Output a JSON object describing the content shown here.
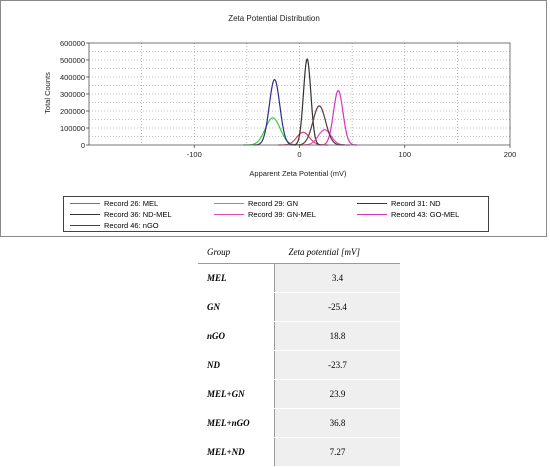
{
  "chart_data": {
    "type": "line",
    "title": "Zeta Potential Distribution",
    "xlabel": "Apparent Zeta Potential (mV)",
    "ylabel": "Total Counts",
    "xlim": [
      -200,
      200
    ],
    "ylim": [
      0,
      600000
    ],
    "xticks": [
      -100,
      0,
      100,
      200
    ],
    "xtick_labels": [
      "-100",
      "0",
      "100",
      "200"
    ],
    "yticks": [
      0,
      100000,
      200000,
      300000,
      400000,
      500000,
      600000
    ],
    "ytick_labels": [
      "0",
      "100000",
      "200000",
      "300000",
      "400000",
      "500000",
      "600000"
    ],
    "grid": true,
    "legend_position": "bottom",
    "series": [
      {
        "name": "Record 26: MEL",
        "color": "#d9456a",
        "peak_x": 3.4,
        "peak_y": 75000,
        "width": 6
      },
      {
        "name": "Record 29: GN",
        "color": "#3ecc3e",
        "peak_x": -25.4,
        "peak_y": 160000,
        "width": 7
      },
      {
        "name": "Record 31: ND",
        "color": "#2b2e8a",
        "peak_x": -23.7,
        "peak_y": 385000,
        "width": 5
      },
      {
        "name": "Record 36: ND-MEL",
        "color": "#333333",
        "peak_x": 7.27,
        "peak_y": 505000,
        "width": 3.5
      },
      {
        "name": "Record 39: GN-MEL",
        "color": "#e04eb7",
        "peak_x": 23.9,
        "peak_y": 90000,
        "width": 6
      },
      {
        "name": "Record 43: GO-MEL",
        "color": "#d633c0",
        "peak_x": 36.8,
        "peak_y": 320000,
        "width": 4.5
      },
      {
        "name": "Record 46: nGO",
        "color": "#5a3a3a",
        "peak_x": 18.8,
        "peak_y": 230000,
        "width": 6
      }
    ]
  },
  "table": {
    "col_group": "Group",
    "col_value": "Zeta potential [mV]",
    "rows": [
      {
        "group": "MEL",
        "value": "3.4"
      },
      {
        "group": "GN",
        "value": "-25.4"
      },
      {
        "group": "nGO",
        "value": "18.8"
      },
      {
        "group": "ND",
        "value": "-23.7"
      },
      {
        "group": "MEL+GN",
        "value": "23.9"
      },
      {
        "group": "MEL+nGO",
        "value": "36.8"
      },
      {
        "group": "MEL+ND",
        "value": "7.27"
      }
    ]
  }
}
